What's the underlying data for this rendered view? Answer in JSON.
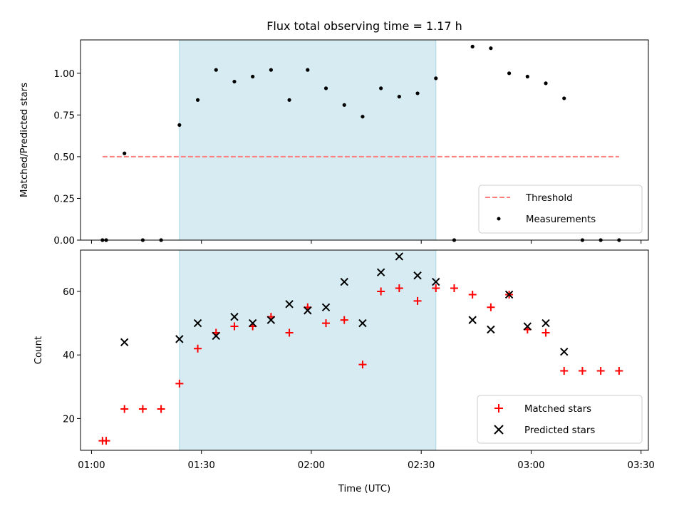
{
  "chart_data": [
    {
      "type": "scatter",
      "title": "Flux total observing time = 1.17 h",
      "xlabel": "",
      "ylabel": "Matched/Predicted stars",
      "xlim": [
        "00:57",
        "03:32"
      ],
      "ylim": [
        0,
        1.2
      ],
      "y_ticks": [
        "0.00",
        "0.25",
        "0.50",
        "0.75",
        "1.00"
      ],
      "shaded_span": [
        "01:24",
        "02:34"
      ],
      "shade_color": "#add8e6",
      "grid": false,
      "legend_placement": "lower-right",
      "series": [
        {
          "name": "Threshold",
          "style": "dashed-line",
          "color": "#ff7f7f",
          "x": [
            "01:03",
            "03:24"
          ],
          "y": [
            0.5,
            0.5
          ]
        },
        {
          "name": "Measurements",
          "style": "dot",
          "color": "#000000",
          "x": [
            "01:03",
            "01:04",
            "01:09",
            "01:14",
            "01:19",
            "01:24",
            "01:29",
            "01:34",
            "01:39",
            "01:44",
            "01:49",
            "01:54",
            "01:59",
            "02:04",
            "02:09",
            "02:14",
            "02:19",
            "02:24",
            "02:29",
            "02:34",
            "02:39",
            "02:44",
            "02:49",
            "02:54",
            "02:59",
            "03:04",
            "03:09",
            "03:14",
            "03:19",
            "03:24"
          ],
          "y": [
            0,
            0,
            0.52,
            0,
            0,
            0.69,
            0.84,
            1.02,
            0.95,
            0.98,
            1.02,
            0.84,
            1.02,
            0.91,
            0.81,
            0.74,
            0.91,
            0.86,
            0.88,
            0.97,
            0,
            1.16,
            1.15,
            1.0,
            0.98,
            0.94,
            0.85,
            0,
            0,
            0
          ]
        }
      ]
    },
    {
      "type": "scatter",
      "title": "",
      "xlabel": "Time (UTC)",
      "ylabel": "Count",
      "xlim": [
        "00:57",
        "03:32"
      ],
      "ylim": [
        10,
        73
      ],
      "y_ticks": [
        "20",
        "40",
        "60"
      ],
      "x_ticks": [
        "01:00",
        "01:30",
        "02:00",
        "02:30",
        "03:00",
        "03:30"
      ],
      "shaded_span": [
        "01:24",
        "02:34"
      ],
      "shade_color": "#add8e6",
      "grid": false,
      "legend_placement": "lower-right",
      "series": [
        {
          "name": "Matched stars",
          "style": "plus",
          "color": "#ff0000",
          "x": [
            "01:03",
            "01:04",
            "01:09",
            "01:14",
            "01:19",
            "01:24",
            "01:29",
            "01:34",
            "01:39",
            "01:44",
            "01:49",
            "01:54",
            "01:59",
            "02:04",
            "02:09",
            "02:14",
            "02:19",
            "02:24",
            "02:29",
            "02:34",
            "02:39",
            "02:44",
            "02:49",
            "02:54",
            "02:59",
            "03:04",
            "03:09",
            "03:14",
            "03:19",
            "03:24"
          ],
          "y": [
            13,
            13,
            23,
            23,
            23,
            31,
            42,
            47,
            49,
            49,
            52,
            47,
            55,
            50,
            51,
            37,
            60,
            61,
            57,
            61,
            61,
            59,
            55,
            59,
            48,
            47,
            35,
            35,
            35,
            35
          ]
        },
        {
          "name": "Predicted stars",
          "style": "x",
          "color": "#000000",
          "x": [
            "01:09",
            "01:24",
            "01:29",
            "01:34",
            "01:39",
            "01:44",
            "01:49",
            "01:54",
            "01:59",
            "02:04",
            "02:09",
            "02:14",
            "02:19",
            "02:24",
            "02:29",
            "02:34",
            "02:44",
            "02:49",
            "02:54",
            "02:59",
            "03:04",
            "03:09"
          ],
          "y": [
            44,
            45,
            50,
            46,
            52,
            50,
            51,
            56,
            54,
            55,
            63,
            50,
            66,
            71,
            65,
            63,
            51,
            48,
            59,
            49,
            50,
            41
          ]
        }
      ]
    }
  ]
}
